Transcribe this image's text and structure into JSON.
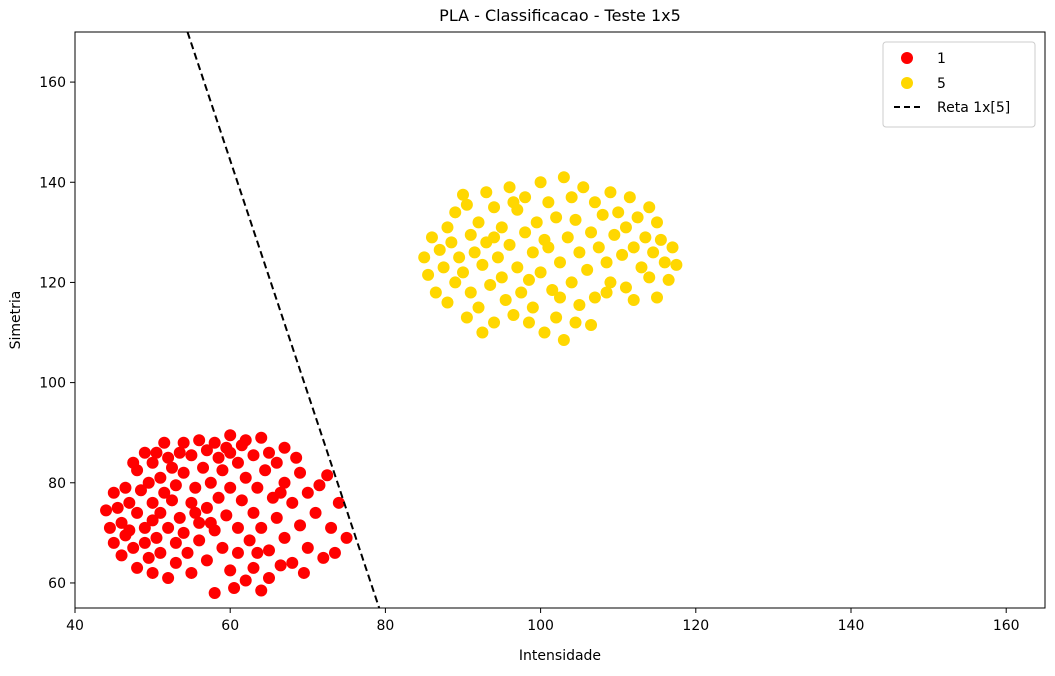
{
  "chart_data": {
    "type": "scatter",
    "title": "PLA - Classificacao - Teste 1x5",
    "xlabel": "Intensidade",
    "ylabel": "Simetria",
    "xlim": [
      40,
      165
    ],
    "ylim": [
      55,
      170
    ],
    "xticks": [
      40,
      60,
      80,
      100,
      120,
      140,
      160
    ],
    "yticks": [
      60,
      80,
      100,
      120,
      140,
      160
    ],
    "grid": false,
    "legend_position": "top-right",
    "series": [
      {
        "name": "1",
        "kind": "points",
        "color": "#ff0000",
        "points": [
          [
            44,
            74.5
          ],
          [
            44.5,
            71
          ],
          [
            45,
            78
          ],
          [
            45,
            68
          ],
          [
            45.5,
            75
          ],
          [
            46,
            72
          ],
          [
            46,
            65.5
          ],
          [
            46.5,
            79
          ],
          [
            46.5,
            69.5
          ],
          [
            47,
            76
          ],
          [
            47,
            70.5
          ],
          [
            47.5,
            67
          ],
          [
            48,
            82.5
          ],
          [
            48,
            74
          ],
          [
            48,
            63
          ],
          [
            48.5,
            78.5
          ],
          [
            49,
            71
          ],
          [
            49,
            68
          ],
          [
            49.5,
            80
          ],
          [
            49.5,
            65
          ],
          [
            50,
            84
          ],
          [
            50,
            76
          ],
          [
            50,
            72.5
          ],
          [
            50,
            62
          ],
          [
            50.5,
            86
          ],
          [
            50.5,
            69
          ],
          [
            51,
            81
          ],
          [
            51,
            74
          ],
          [
            51,
            66
          ],
          [
            51.5,
            78
          ],
          [
            52,
            85
          ],
          [
            52,
            71
          ],
          [
            52,
            61
          ],
          [
            52.5,
            83
          ],
          [
            52.5,
            76.5
          ],
          [
            53,
            79.5
          ],
          [
            53,
            68
          ],
          [
            53,
            64
          ],
          [
            53.5,
            73
          ],
          [
            54,
            88
          ],
          [
            54,
            82
          ],
          [
            54,
            70
          ],
          [
            54.5,
            66
          ],
          [
            55,
            85.5
          ],
          [
            55,
            76
          ],
          [
            55,
            62
          ],
          [
            55.5,
            79
          ],
          [
            56,
            88.5
          ],
          [
            56,
            72
          ],
          [
            56,
            68.5
          ],
          [
            56.5,
            83
          ],
          [
            57,
            86.5
          ],
          [
            57,
            75
          ],
          [
            57,
            64.5
          ],
          [
            57.5,
            80
          ],
          [
            58,
            88
          ],
          [
            58,
            70.5
          ],
          [
            58,
            58
          ],
          [
            58.5,
            85
          ],
          [
            58.5,
            77
          ],
          [
            59,
            82.5
          ],
          [
            59,
            67
          ],
          [
            59.5,
            73.5
          ],
          [
            60,
            89.5
          ],
          [
            60,
            86
          ],
          [
            60,
            79
          ],
          [
            60,
            62.5
          ],
          [
            60.5,
            59
          ],
          [
            61,
            84
          ],
          [
            61,
            71
          ],
          [
            61,
            66
          ],
          [
            61.5,
            76.5
          ],
          [
            62,
            88.5
          ],
          [
            62,
            81
          ],
          [
            62,
            60.5
          ],
          [
            62.5,
            68.5
          ],
          [
            63,
            85.5
          ],
          [
            63,
            74
          ],
          [
            63,
            63
          ],
          [
            63.5,
            79
          ],
          [
            64,
            89
          ],
          [
            64,
            71
          ],
          [
            64,
            58.5
          ],
          [
            64.5,
            82.5
          ],
          [
            65,
            86
          ],
          [
            65,
            66.5
          ],
          [
            65,
            61
          ],
          [
            65.5,
            77
          ],
          [
            66,
            84
          ],
          [
            66,
            73
          ],
          [
            66.5,
            63.5
          ],
          [
            67,
            87
          ],
          [
            67,
            80
          ],
          [
            67,
            69
          ],
          [
            68,
            76
          ],
          [
            68,
            64
          ],
          [
            68.5,
            85
          ],
          [
            69,
            71.5
          ],
          [
            69,
            82
          ],
          [
            69.5,
            62
          ],
          [
            70,
            78
          ],
          [
            70,
            67
          ],
          [
            71,
            74
          ],
          [
            71.5,
            79.5
          ],
          [
            72,
            65
          ],
          [
            72.5,
            81.5
          ],
          [
            73,
            71
          ],
          [
            73.5,
            66
          ],
          [
            74,
            76
          ],
          [
            75,
            69
          ],
          [
            47.5,
            84
          ],
          [
            49,
            86
          ],
          [
            51.5,
            88
          ],
          [
            53.5,
            86
          ],
          [
            55.5,
            74
          ],
          [
            57.5,
            72
          ],
          [
            59.5,
            87
          ],
          [
            61.5,
            87.5
          ],
          [
            63.5,
            66
          ],
          [
            66.5,
            78
          ]
        ]
      },
      {
        "name": "5",
        "kind": "points",
        "color": "#ffd700",
        "points": [
          [
            85,
            125
          ],
          [
            85.5,
            121.5
          ],
          [
            86,
            129
          ],
          [
            86.5,
            118
          ],
          [
            87,
            126.5
          ],
          [
            87.5,
            123
          ],
          [
            88,
            131
          ],
          [
            88,
            116
          ],
          [
            88.5,
            128
          ],
          [
            89,
            120
          ],
          [
            89,
            134
          ],
          [
            89.5,
            125
          ],
          [
            90,
            137.5
          ],
          [
            90,
            122
          ],
          [
            90.5,
            113
          ],
          [
            91,
            129.5
          ],
          [
            91,
            118
          ],
          [
            91.5,
            126
          ],
          [
            92,
            132
          ],
          [
            92,
            115
          ],
          [
            92.5,
            123.5
          ],
          [
            93,
            138
          ],
          [
            93,
            128
          ],
          [
            93.5,
            119.5
          ],
          [
            94,
            135
          ],
          [
            94,
            112
          ],
          [
            94.5,
            125
          ],
          [
            95,
            131
          ],
          [
            95,
            121
          ],
          [
            95.5,
            116.5
          ],
          [
            96,
            139
          ],
          [
            96,
            127.5
          ],
          [
            96.5,
            113.5
          ],
          [
            97,
            134.5
          ],
          [
            97,
            123
          ],
          [
            97.5,
            118
          ],
          [
            98,
            137
          ],
          [
            98,
            130
          ],
          [
            98.5,
            120.5
          ],
          [
            99,
            126
          ],
          [
            99,
            115
          ],
          [
            99.5,
            132
          ],
          [
            100,
            140
          ],
          [
            100,
            122
          ],
          [
            100.5,
            110
          ],
          [
            101,
            136
          ],
          [
            101,
            127
          ],
          [
            101.5,
            118.5
          ],
          [
            102,
            133
          ],
          [
            102,
            113
          ],
          [
            102.5,
            124
          ],
          [
            103,
            141
          ],
          [
            103,
            108.5
          ],
          [
            103.5,
            129
          ],
          [
            104,
            137
          ],
          [
            104,
            120
          ],
          [
            104.5,
            132.5
          ],
          [
            105,
            126
          ],
          [
            105,
            115.5
          ],
          [
            105.5,
            139
          ],
          [
            106,
            122.5
          ],
          [
            106.5,
            130
          ],
          [
            107,
            136
          ],
          [
            107,
            117
          ],
          [
            107.5,
            127
          ],
          [
            108,
            133.5
          ],
          [
            108.5,
            124
          ],
          [
            109,
            138
          ],
          [
            109,
            120
          ],
          [
            109.5,
            129.5
          ],
          [
            110,
            134
          ],
          [
            110.5,
            125.5
          ],
          [
            111,
            131
          ],
          [
            111,
            119
          ],
          [
            111.5,
            137
          ],
          [
            112,
            127
          ],
          [
            112,
            116.5
          ],
          [
            112.5,
            133
          ],
          [
            113,
            123
          ],
          [
            113.5,
            129
          ],
          [
            114,
            135
          ],
          [
            114,
            121
          ],
          [
            114.5,
            126
          ],
          [
            115,
            132
          ],
          [
            115,
            117
          ],
          [
            115.5,
            128.5
          ],
          [
            116,
            124
          ],
          [
            116.5,
            120.5
          ],
          [
            117,
            127
          ],
          [
            117.5,
            123.5
          ],
          [
            90.5,
            135.5
          ],
          [
            92.5,
            110
          ],
          [
            94,
            129
          ],
          [
            96.5,
            136
          ],
          [
            98.5,
            112
          ],
          [
            100.5,
            128.5
          ],
          [
            102.5,
            117
          ],
          [
            104.5,
            112
          ],
          [
            106.5,
            111.5
          ],
          [
            108.5,
            118
          ]
        ]
      },
      {
        "name": "Reta 1x[5]",
        "kind": "line",
        "color": "#000000",
        "dash": true,
        "points": [
          [
            54.5,
            170
          ],
          [
            79.2,
            55
          ]
        ]
      }
    ]
  }
}
